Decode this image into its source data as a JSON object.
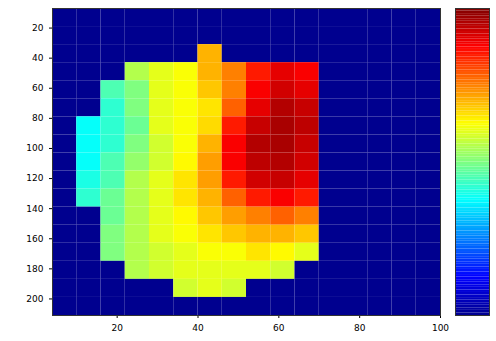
{
  "chart_data": {
    "type": "heatmap",
    "xlim": [
      4,
      100
    ],
    "ylim": [
      7,
      211
    ],
    "xticks": [
      20,
      40,
      60,
      80,
      100
    ],
    "yticks": [
      20,
      40,
      60,
      80,
      100,
      120,
      140,
      160,
      180,
      200
    ],
    "x": [
      7,
      13,
      19,
      25,
      31,
      37,
      43,
      49,
      55,
      61,
      67,
      73,
      79,
      85,
      91,
      97
    ],
    "y": [
      13,
      25,
      37,
      49,
      61,
      73,
      85,
      97,
      109,
      121,
      133,
      145,
      157,
      169,
      181,
      193,
      205
    ],
    "cells": [
      [
        0,
        0,
        0,
        0,
        0,
        0,
        0,
        0,
        0,
        0,
        0,
        0,
        0,
        0,
        0,
        0
      ],
      [
        0,
        0,
        0,
        0,
        0,
        0,
        0,
        0,
        0,
        0,
        0,
        0,
        0,
        0,
        0,
        0
      ],
      [
        0,
        0,
        0,
        0,
        0,
        0,
        0.7,
        0,
        0,
        0,
        0,
        0,
        0,
        0,
        0,
        0
      ],
      [
        0,
        0,
        0,
        0.55,
        0.6,
        0.62,
        0.7,
        0.75,
        0.85,
        0.9,
        0.88,
        0,
        0,
        0,
        0,
        0
      ],
      [
        0,
        0,
        0.45,
        0.5,
        0.6,
        0.62,
        0.68,
        0.75,
        0.88,
        0.92,
        0.9,
        0,
        0,
        0,
        0,
        0
      ],
      [
        0,
        0,
        0.42,
        0.5,
        0.6,
        0.62,
        0.65,
        0.78,
        0.9,
        0.95,
        0.93,
        0,
        0,
        0,
        0,
        0
      ],
      [
        0,
        0.38,
        0.42,
        0.48,
        0.6,
        0.62,
        0.66,
        0.85,
        0.93,
        0.96,
        0.94,
        0,
        0,
        0,
        0,
        0
      ],
      [
        0,
        0.38,
        0.42,
        0.5,
        0.58,
        0.62,
        0.7,
        0.88,
        0.95,
        0.96,
        0.93,
        0,
        0,
        0,
        0,
        0
      ],
      [
        0,
        0.38,
        0.45,
        0.52,
        0.58,
        0.63,
        0.72,
        0.88,
        0.94,
        0.95,
        0.92,
        0,
        0,
        0,
        0,
        0
      ],
      [
        0,
        0.4,
        0.45,
        0.55,
        0.6,
        0.65,
        0.72,
        0.85,
        0.92,
        0.93,
        0.9,
        0,
        0,
        0,
        0,
        0
      ],
      [
        0,
        0.42,
        0.48,
        0.55,
        0.6,
        0.65,
        0.7,
        0.78,
        0.85,
        0.88,
        0.85,
        0,
        0,
        0,
        0,
        0
      ],
      [
        0,
        0,
        0.48,
        0.55,
        0.6,
        0.63,
        0.68,
        0.72,
        0.75,
        0.78,
        0.75,
        0,
        0,
        0,
        0,
        0
      ],
      [
        0,
        0,
        0.5,
        0.55,
        0.6,
        0.62,
        0.65,
        0.68,
        0.7,
        0.7,
        0.68,
        0,
        0,
        0,
        0,
        0
      ],
      [
        0,
        0,
        0.5,
        0.55,
        0.58,
        0.6,
        0.62,
        0.62,
        0.65,
        0.63,
        0.6,
        0,
        0,
        0,
        0,
        0
      ],
      [
        0,
        0,
        0,
        0.55,
        0.58,
        0.6,
        0.6,
        0.6,
        0.6,
        0.58,
        0,
        0,
        0,
        0,
        0,
        0
      ],
      [
        0,
        0,
        0,
        0,
        0,
        0.58,
        0.6,
        0.58,
        0,
        0,
        0,
        0,
        0,
        0,
        0,
        0
      ],
      [
        0,
        0,
        0,
        0,
        0,
        0,
        0,
        0,
        0,
        0,
        0,
        0,
        0,
        0,
        0,
        0
      ]
    ],
    "colorbar": {
      "range": [
        0,
        1
      ]
    }
  }
}
